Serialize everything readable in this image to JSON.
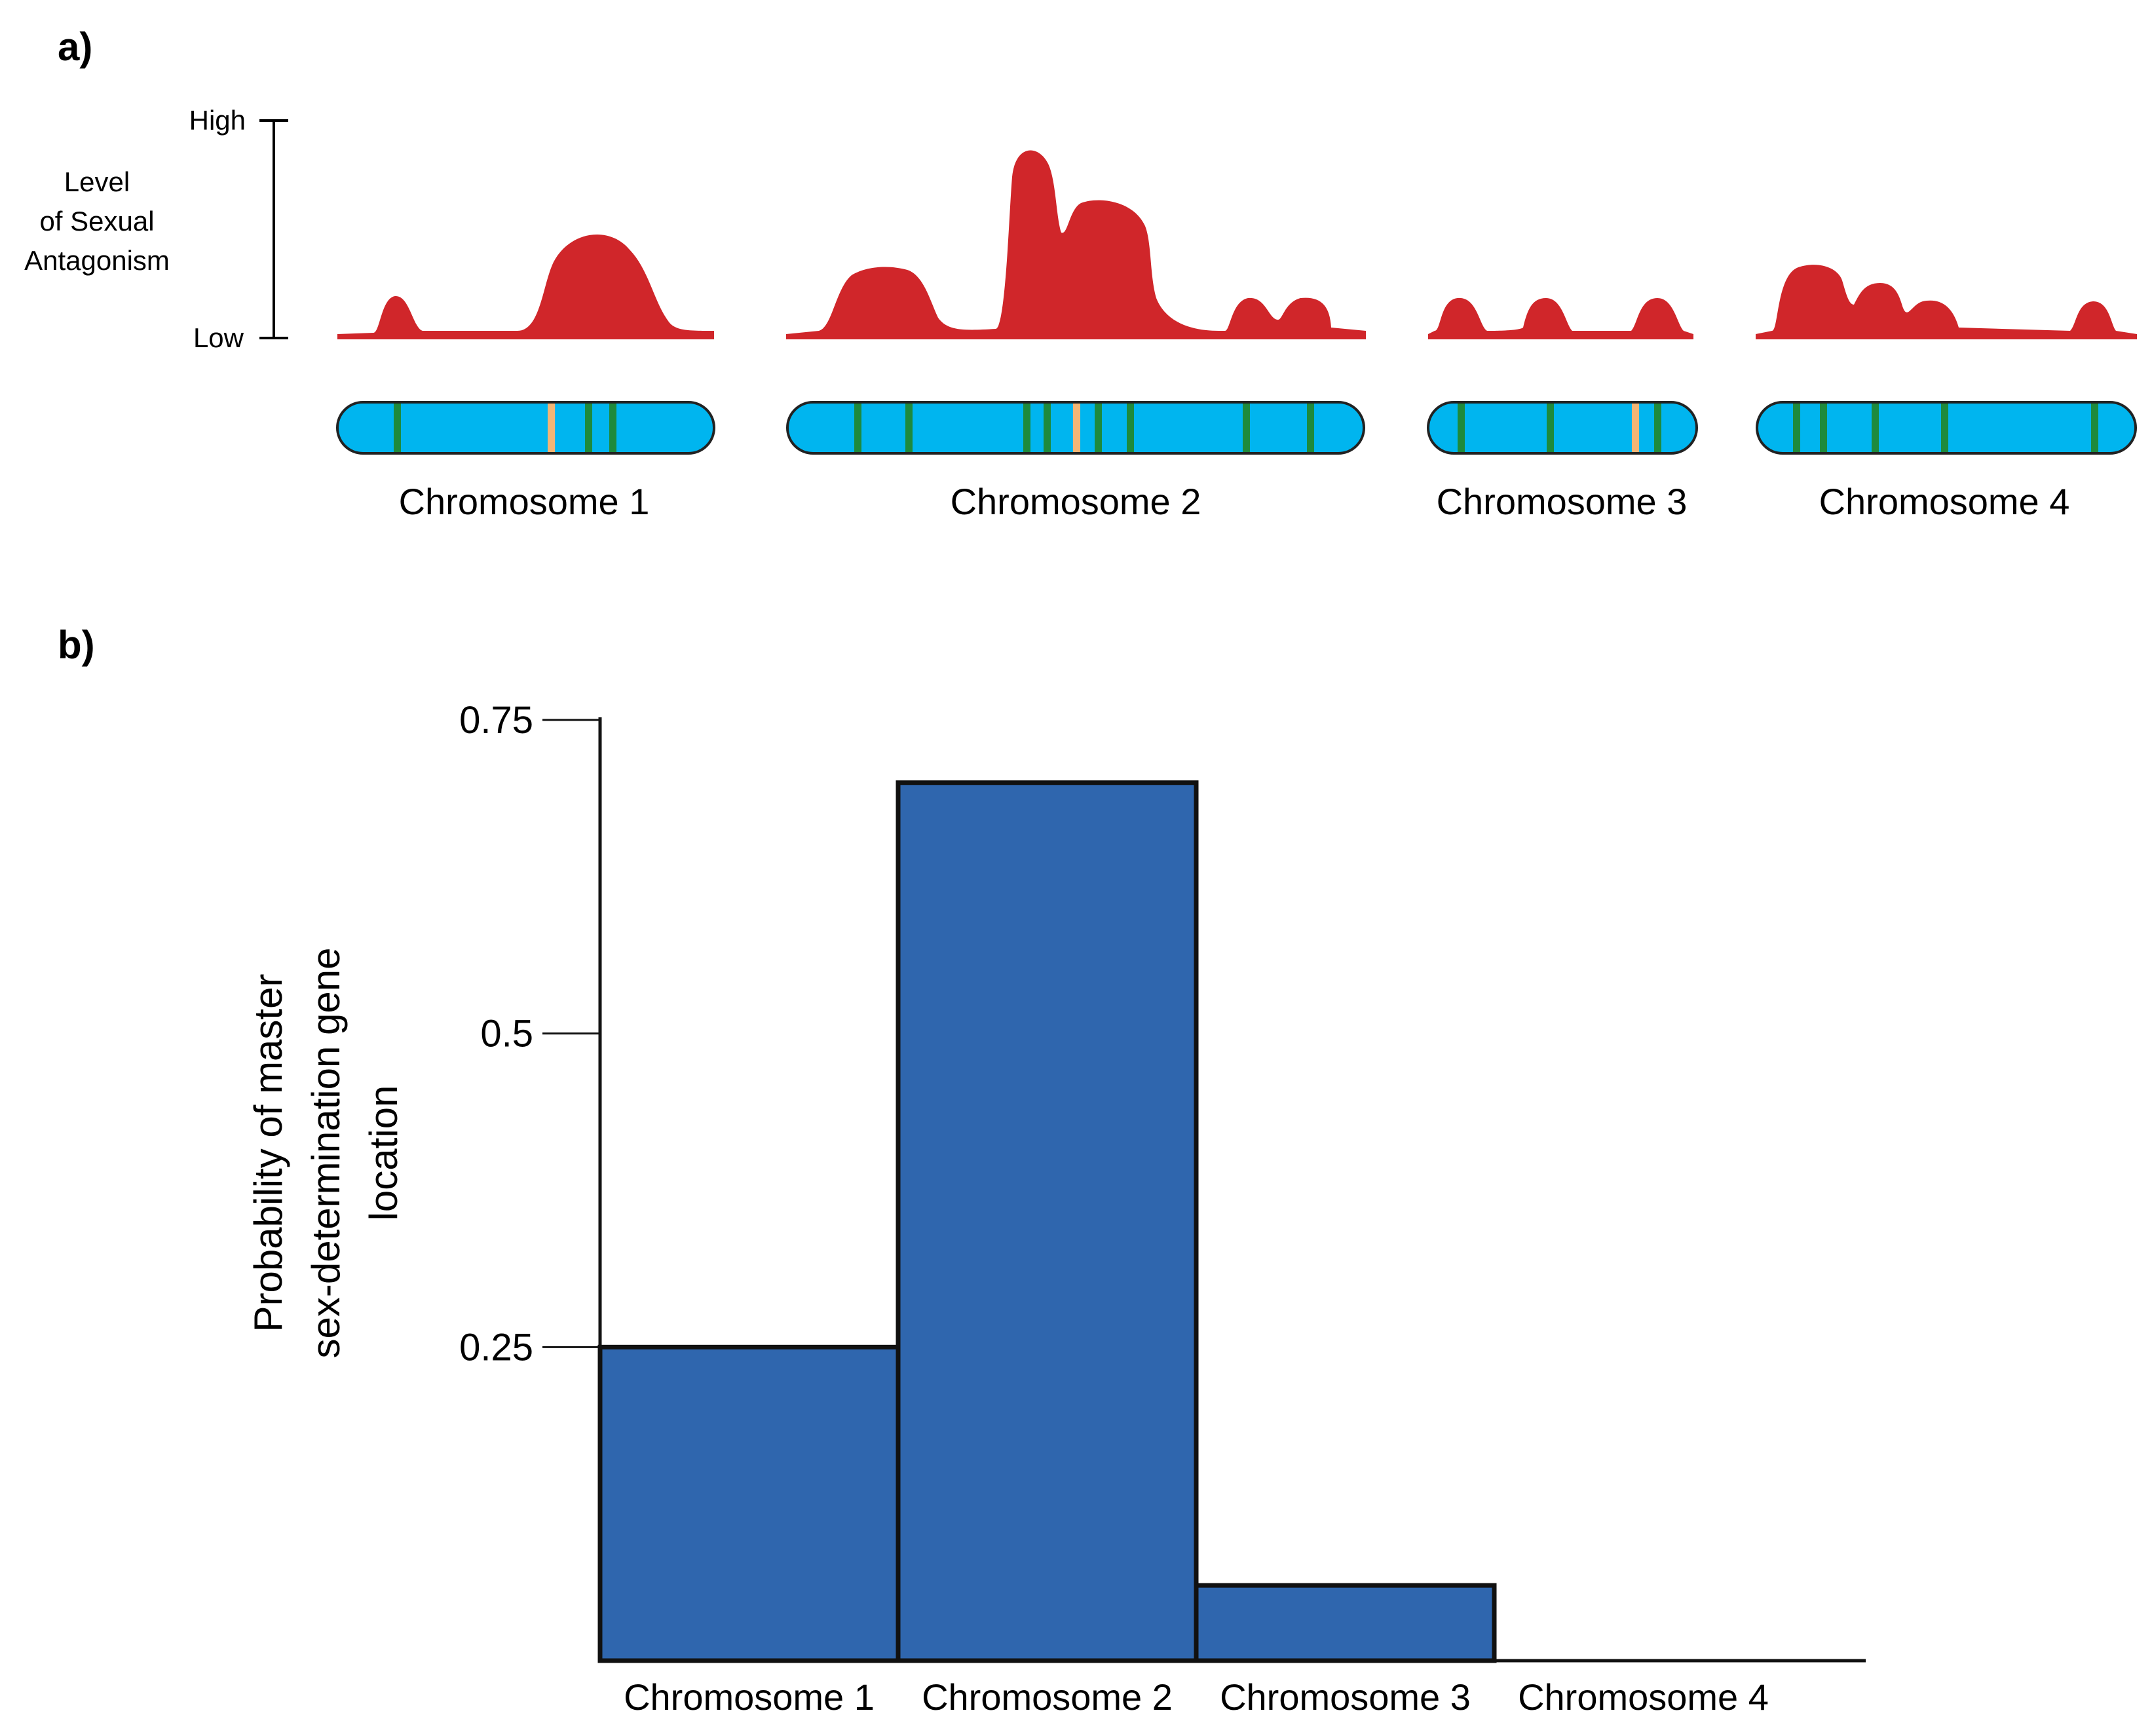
{
  "panel_a": {
    "label": "a)",
    "axis": {
      "high_label": "High",
      "low_label": "Low",
      "title_lines": [
        "Level",
        "of Sexual",
        "Antagonism"
      ]
    },
    "peak_color": "#D0262A",
    "chromosome_color": "#00B5EF",
    "marker_green": "#1E8A3C",
    "marker_orange": "#F2B575",
    "chromosomes": [
      {
        "label": "Chromosome 1"
      },
      {
        "label": "Chromosome 2"
      },
      {
        "label": "Chromosome 3"
      },
      {
        "label": "Chromosome 4"
      }
    ]
  },
  "panel_b": {
    "label": "b)",
    "bar_color": "#2F66AE"
  },
  "chart_data": {
    "type": "bar",
    "title": "",
    "xlabel": "",
    "ylabel": [
      "Probability of master",
      "sex-determination gene",
      "location"
    ],
    "categories": [
      "Chromosome 1",
      "Chromosome 2",
      "Chromosome 3",
      "Chromosome 4"
    ],
    "values": [
      0.25,
      0.7,
      0.06,
      0
    ],
    "ylim": [
      0,
      0.75
    ],
    "yticks": [
      0.25,
      0.5,
      0.75
    ],
    "ytick_labels": [
      "0.25",
      "0.5",
      "0.75"
    ],
    "grid": false
  }
}
